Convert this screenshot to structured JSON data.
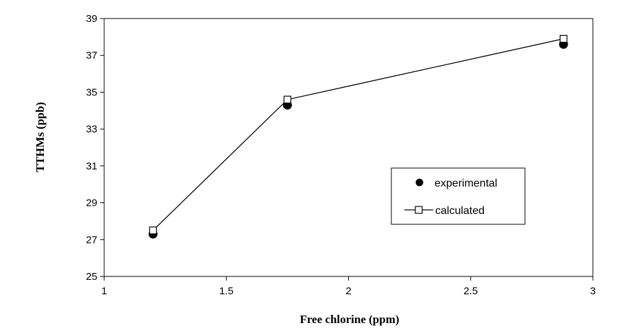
{
  "chart_data": {
    "type": "scatter",
    "title": "",
    "xlabel": "Free chlorine (ppm)",
    "ylabel": "TTHMs (ppb)",
    "xlim": [
      1,
      3
    ],
    "ylim": [
      25,
      39
    ],
    "x_ticks": [
      "1",
      "1.5",
      "2",
      "2.5",
      "3"
    ],
    "y_ticks": [
      "25",
      "27",
      "29",
      "31",
      "33",
      "35",
      "37",
      "39"
    ],
    "x_tick_values": [
      1,
      1.5,
      2,
      2.5,
      3
    ],
    "y_tick_values": [
      25,
      27,
      29,
      31,
      33,
      35,
      37,
      39
    ],
    "grid": false,
    "legend_position": "middle-right",
    "series": [
      {
        "name": "experimental",
        "style": "markers",
        "marker": "filled-circle",
        "color": "#000000",
        "x": [
          1.2,
          1.75,
          2.88
        ],
        "y": [
          27.3,
          34.3,
          37.6
        ]
      },
      {
        "name": "calculated",
        "style": "line-markers",
        "marker": "open-square",
        "color": "#000000",
        "x": [
          1.2,
          1.75,
          2.88
        ],
        "y": [
          27.5,
          34.6,
          37.9
        ]
      }
    ]
  }
}
